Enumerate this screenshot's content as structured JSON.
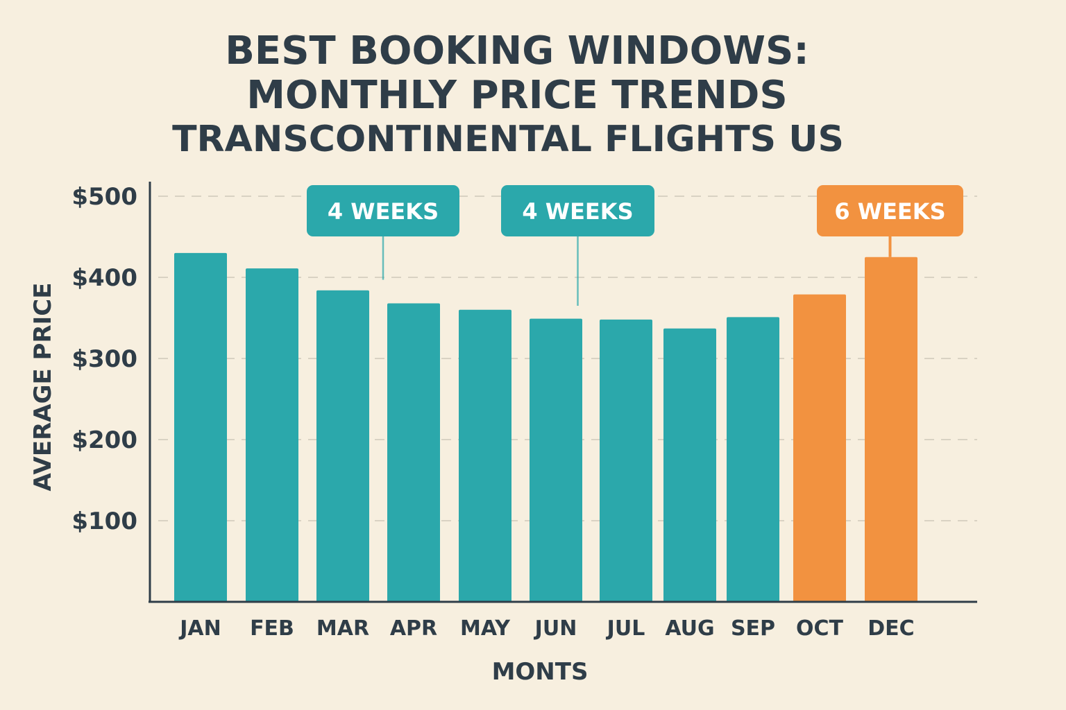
{
  "title_lines": [
    "BEST BOOKING WINDOWS:",
    "MONTHLY PRICE TRENDS",
    "TRANSCONTINENTAL FLIGHTS US"
  ],
  "colors": {
    "background": "#f7efdf",
    "text": "#2f3d48",
    "teal": "#2ba8ab",
    "orange": "#f29240",
    "grid": "#d9d2c3"
  },
  "chart_data": {
    "type": "bar",
    "title": "BEST BOOKING WINDOWS: MONTHLY PRICE TRENDS TRANSCONTINENTAL FLIGHTS US",
    "xlabel": "MONTS",
    "ylabel": "AVERAGE PRICE",
    "ylim": [
      0,
      500
    ],
    "yticks": [
      {
        "value": 100,
        "label": "$100"
      },
      {
        "value": 200,
        "label": "$200"
      },
      {
        "value": 300,
        "label": "$300"
      },
      {
        "value": 400,
        "label": "$400"
      },
      {
        "value": 500,
        "label": "$500"
      }
    ],
    "grid": true,
    "categories": [
      "JAN",
      "FEB",
      "MAR",
      "APR",
      "MAY",
      "JUN",
      "JUL",
      "AUG",
      "SEP",
      "OCT",
      "DEC"
    ],
    "values": [
      430,
      411,
      384,
      368,
      360,
      349,
      348,
      337,
      351,
      379,
      425
    ],
    "bar_colors": [
      "teal",
      "teal",
      "teal",
      "teal",
      "teal",
      "teal",
      "teal",
      "teal",
      "teal",
      "orange",
      "orange"
    ],
    "annotations": [
      {
        "text": "4 WEEKS",
        "between": [
          "MAR",
          "APR"
        ],
        "color": "teal",
        "pointer_value": 397
      },
      {
        "text": "4 WEEKS",
        "between": [
          "JUN",
          "JUL"
        ],
        "color": "teal",
        "pointer_value": 365
      },
      {
        "text": "6 WEEKS",
        "category": "DEC",
        "color": "orange",
        "pointer_value": 425
      }
    ]
  }
}
